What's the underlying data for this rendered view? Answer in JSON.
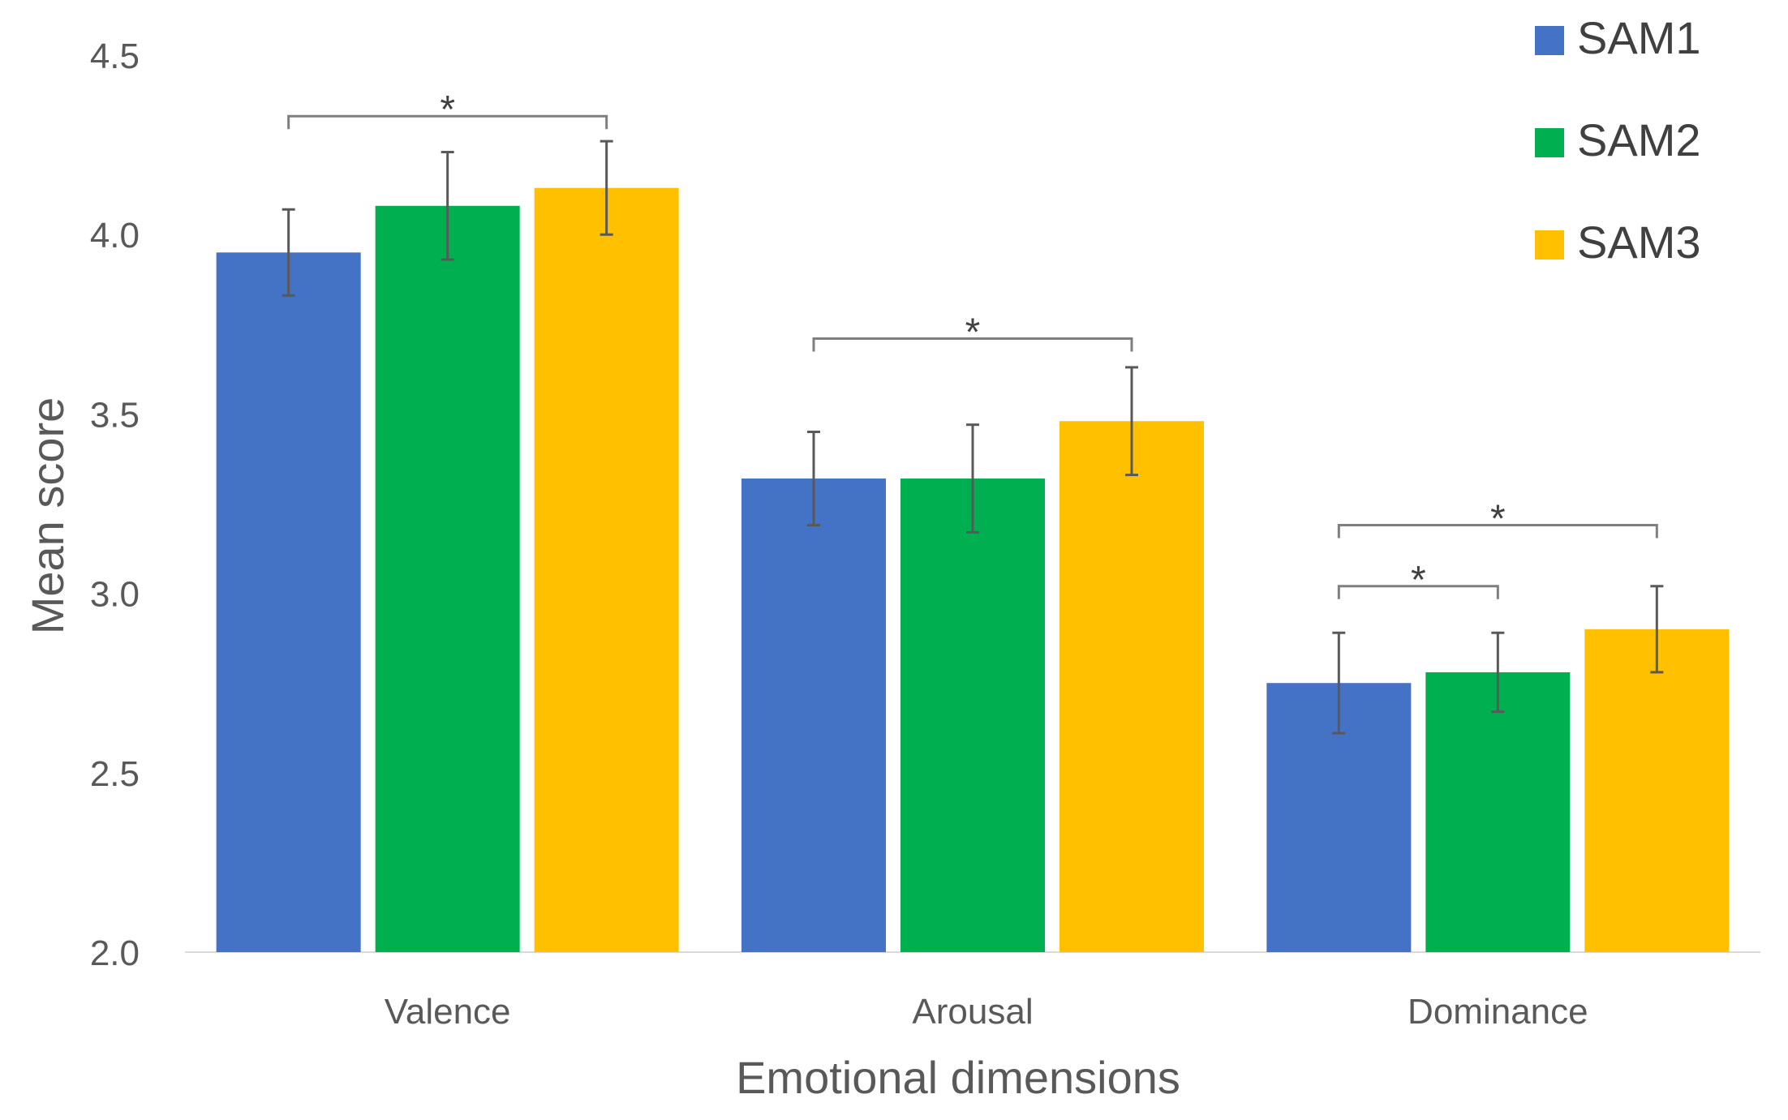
{
  "chart_data": {
    "type": "bar",
    "title": "",
    "xlabel": "Emotional dimensions",
    "ylabel": "Mean score",
    "ylim": [
      2.0,
      4.5
    ],
    "yticks": [
      "2.0",
      "2.5",
      "3.0",
      "3.5",
      "4.0",
      "4.5"
    ],
    "grid": false,
    "legend_position": "top-right",
    "categories": [
      "Valence",
      "Arousal",
      "Dominance"
    ],
    "series": [
      {
        "name": "SAM1",
        "color": "#4472C4",
        "values": [
          3.95,
          3.32,
          2.75
        ],
        "errors": [
          0.12,
          0.13,
          0.14
        ]
      },
      {
        "name": "SAM2",
        "color": "#00B050",
        "values": [
          4.08,
          3.32,
          2.78
        ],
        "errors": [
          0.15,
          0.15,
          0.11
        ]
      },
      {
        "name": "SAM3",
        "color": "#FFC000",
        "values": [
          4.13,
          3.48,
          2.9
        ],
        "errors": [
          0.13,
          0.15,
          0.12
        ]
      }
    ],
    "significance": [
      {
        "category": 0,
        "from_series": 0,
        "to_series": 2,
        "y": 4.33,
        "label": "*"
      },
      {
        "category": 1,
        "from_series": 0,
        "to_series": 2,
        "y": 3.71,
        "label": "*"
      },
      {
        "category": 2,
        "from_series": 0,
        "to_series": 2,
        "y": 3.19,
        "label": "*"
      },
      {
        "category": 2,
        "from_series": 0,
        "to_series": 1,
        "y": 3.02,
        "label": "*"
      }
    ]
  }
}
